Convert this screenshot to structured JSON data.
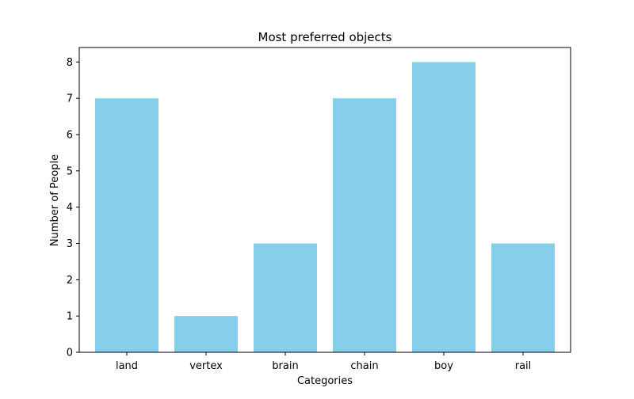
{
  "chart_data": {
    "type": "bar",
    "title": "Most preferred objects",
    "xlabel": "Categories",
    "ylabel": "Number of People",
    "categories": [
      "land",
      "vertex",
      "brain",
      "chain",
      "boy",
      "rail"
    ],
    "values": [
      7,
      1,
      3,
      7,
      8,
      3
    ],
    "ylim": [
      0,
      8.4
    ],
    "yticks": [
      0,
      1,
      2,
      3,
      4,
      5,
      6,
      7,
      8
    ],
    "bar_color": "#87ceeb",
    "grid": false,
    "legend": "none"
  }
}
